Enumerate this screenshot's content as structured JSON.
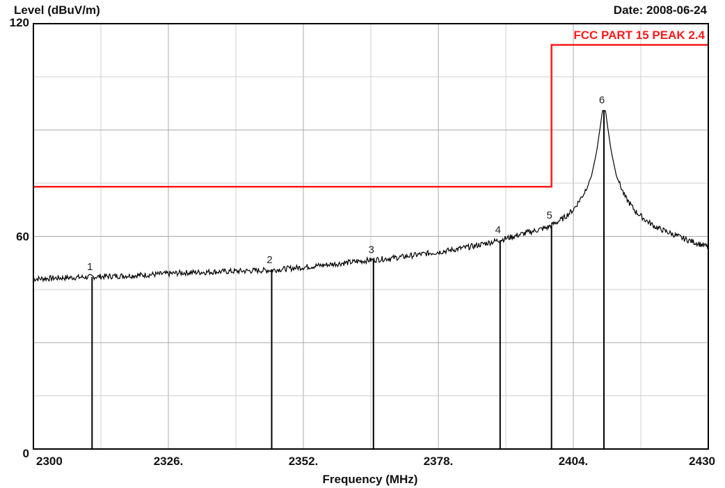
{
  "header": {
    "ylabel": "Level (dBuV/m)",
    "date": "Date: 2008-06-24"
  },
  "colors": {
    "limit": "#ff1a1a",
    "trace": "#000000",
    "major_grid": "#a8a8a8",
    "minor_grid": "#d0d0d0",
    "frame": "#000000"
  },
  "chart_data": {
    "type": "line",
    "xlabel": "Frequency (MHz)",
    "ylabel": "Level (dBuV/m)",
    "xlim": [
      2300,
      2430
    ],
    "ylim": [
      0,
      120
    ],
    "x_ticks": [
      2300,
      2326,
      2352,
      2378,
      2404,
      2430
    ],
    "x_tick_labels": [
      "2300",
      "2326.",
      "2352.",
      "2378.",
      "2404.",
      "2430"
    ],
    "y_ticks": [
      0,
      60,
      120
    ],
    "y_tick_labels": [
      "0",
      "60",
      "120"
    ],
    "grid": true,
    "limit_line": {
      "name": "FCC PART 15 PEAK 2.4",
      "points": [
        [
          2300,
          74
        ],
        [
          2399.8,
          74
        ],
        [
          2399.8,
          114
        ],
        [
          2430,
          114
        ]
      ]
    },
    "trace": {
      "anchors": [
        [
          2300,
          48.0
        ],
        [
          2310,
          48.5
        ],
        [
          2320,
          49.0
        ],
        [
          2330,
          49.8
        ],
        [
          2340,
          50.2
        ],
        [
          2346,
          50.5
        ],
        [
          2352,
          51.3
        ],
        [
          2360,
          52.5
        ],
        [
          2365,
          53.3
        ],
        [
          2370,
          54.0
        ],
        [
          2375,
          55.0
        ],
        [
          2380,
          56.0
        ],
        [
          2385,
          57.3
        ],
        [
          2390,
          59.0
        ],
        [
          2395,
          61.0
        ],
        [
          2399,
          62.5
        ],
        [
          2402,
          65.0
        ],
        [
          2404,
          67.5
        ],
        [
          2406,
          72.0
        ],
        [
          2407.5,
          77.0
        ],
        [
          2408.5,
          84.0
        ],
        [
          2409.2,
          91.0
        ],
        [
          2409.6,
          95.5
        ],
        [
          2410.2,
          95.5
        ],
        [
          2410.6,
          91.0
        ],
        [
          2411.3,
          84.0
        ],
        [
          2412.3,
          77.0
        ],
        [
          2414,
          71.0
        ],
        [
          2416,
          67.0
        ],
        [
          2418,
          64.5
        ],
        [
          2420,
          62.5
        ],
        [
          2425,
          59.5
        ],
        [
          2430,
          57.0
        ]
      ]
    },
    "markers": [
      {
        "label": "1",
        "x": 2311.3,
        "y": 48.5
      },
      {
        "label": "2",
        "x": 2345.9,
        "y": 50.5
      },
      {
        "label": "3",
        "x": 2365.5,
        "y": 53.3
      },
      {
        "label": "4",
        "x": 2389.9,
        "y": 58.9
      },
      {
        "label": "5",
        "x": 2399.8,
        "y": 63.0
      },
      {
        "label": "6",
        "x": 2409.9,
        "y": 95.5
      }
    ]
  }
}
